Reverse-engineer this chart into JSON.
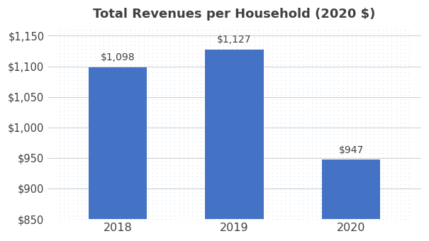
{
  "title": "Total Revenues per Household (2020 $)",
  "categories": [
    "2018",
    "2019",
    "2020"
  ],
  "values": [
    1098,
    1127,
    947
  ],
  "bar_color": "#4472C4",
  "ylim": [
    850,
    1160
  ],
  "yticks": [
    850,
    900,
    950,
    1000,
    1050,
    1100,
    1150
  ],
  "bar_labels": [
    "$1,098",
    "$1,127",
    "$947"
  ],
  "label_offsets": [
    8,
    8,
    8
  ],
  "figure_bg_color": "#ffffff",
  "plot_bg_color": "#ffffff",
  "title_fontsize": 13,
  "tick_fontsize": 10.5,
  "label_fontsize": 10,
  "bar_width": 0.5,
  "title_color": "#404040",
  "tick_color": "#404040",
  "label_color": "#404040",
  "grid_color": "#aaaaaa",
  "dot_color": "#aac8e8"
}
